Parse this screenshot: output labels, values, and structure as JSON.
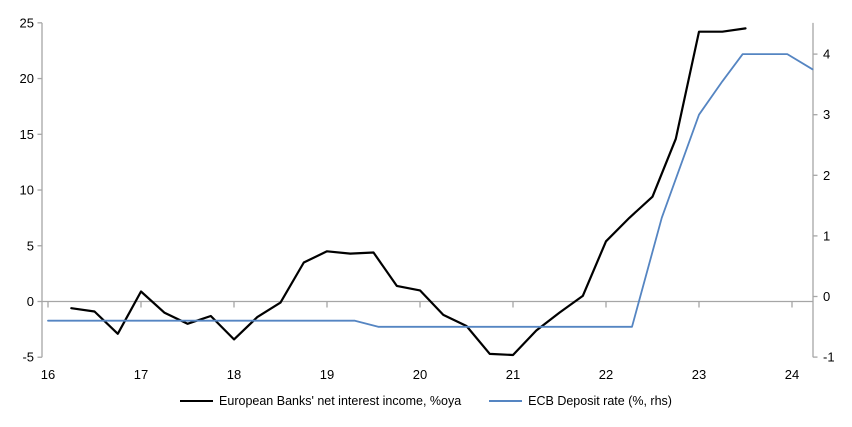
{
  "chart_data": {
    "type": "line",
    "title": "",
    "legend_position": "bottom",
    "axis_color": "#a6a6a6",
    "zero_gridline": true,
    "x_axis": {
      "tick_labels": [
        "16",
        "17",
        "18",
        "19",
        "20",
        "21",
        "22",
        "23",
        "24"
      ],
      "tick_values": [
        16,
        17,
        18,
        19,
        20,
        21,
        22,
        23,
        24
      ],
      "range": [
        16,
        24.25
      ]
    },
    "left_axis": {
      "tick_labels": [
        "-5",
        "0",
        "5",
        "10",
        "15",
        "20",
        "25"
      ],
      "tick_values": [
        -5,
        0,
        5,
        10,
        15,
        20,
        25
      ],
      "range": [
        -5,
        25
      ]
    },
    "right_axis": {
      "tick_labels": [
        "-1",
        "0",
        "1",
        "2",
        "3",
        "4"
      ],
      "tick_values": [
        -1,
        0,
        1,
        2,
        3,
        4
      ],
      "range": [
        -1.05,
        4.55
      ]
    },
    "series": [
      {
        "name": "European Banks' net interest income, %oya",
        "axis": "left",
        "color": "#000000",
        "width": 2.2,
        "points": [
          [
            16.25,
            -0.6
          ],
          [
            16.5,
            -0.9
          ],
          [
            16.75,
            -2.9
          ],
          [
            17,
            0.9
          ],
          [
            17.25,
            -1.0
          ],
          [
            17.5,
            -2.0
          ],
          [
            17.75,
            -1.3
          ],
          [
            18,
            -3.4
          ],
          [
            18.25,
            -1.4
          ],
          [
            18.5,
            -0.1
          ],
          [
            18.75,
            3.5
          ],
          [
            19,
            4.5
          ],
          [
            19.25,
            4.3
          ],
          [
            19.5,
            4.4
          ],
          [
            19.75,
            1.4
          ],
          [
            20,
            1.0
          ],
          [
            20.25,
            -1.2
          ],
          [
            20.5,
            -2.2
          ],
          [
            20.75,
            -4.7
          ],
          [
            21,
            -4.8
          ],
          [
            21.25,
            -2.6
          ],
          [
            21.5,
            -1.0
          ],
          [
            21.75,
            0.5
          ],
          [
            22,
            5.4
          ],
          [
            22.25,
            7.5
          ],
          [
            22.5,
            9.4
          ],
          [
            22.75,
            14.6
          ],
          [
            23,
            24.2
          ],
          [
            23.25,
            24.2
          ],
          [
            23.5,
            24.5
          ]
        ]
      },
      {
        "name": "ECB Deposit rate (%, rhs)",
        "axis": "right",
        "color": "#5585c2",
        "width": 1.8,
        "points": [
          [
            16.0,
            -0.4
          ],
          [
            19.3,
            -0.4
          ],
          [
            19.55,
            -0.5
          ],
          [
            22.28,
            -0.5
          ],
          [
            22.6,
            1.3
          ],
          [
            23.0,
            3.0
          ],
          [
            23.25,
            3.55
          ],
          [
            23.47,
            4.0
          ],
          [
            23.95,
            4.0
          ],
          [
            24.22,
            3.75
          ]
        ]
      }
    ]
  }
}
